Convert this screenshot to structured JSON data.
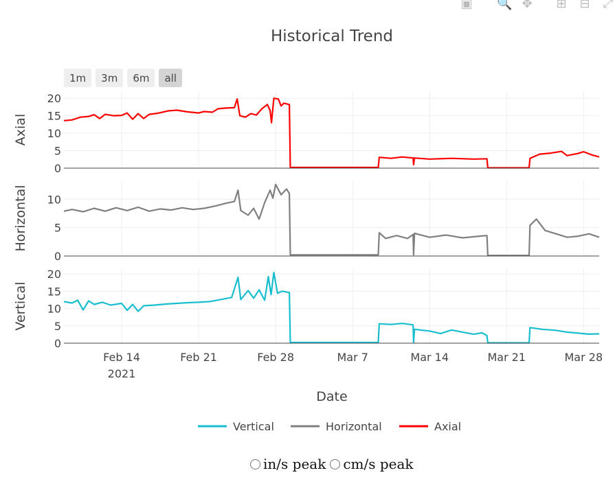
{
  "modebar": {
    "icons": [
      "camera-icon",
      "zoom-icon",
      "pan-icon",
      "zoom-in-icon",
      "zoom-out-icon",
      "autoscale-icon"
    ]
  },
  "range_selector": {
    "buttons": [
      "1m",
      "3m",
      "6m",
      "all"
    ],
    "active": "all"
  },
  "radio_options": {
    "in": "in/s peak",
    "cm": "cm/s peak"
  },
  "chart_data": {
    "type": "line",
    "title": "Historical Trend",
    "xlabel": "Date",
    "xlim": [
      "2021-02-08 18:00",
      "2021-03-29 10:00"
    ],
    "x_ticks": [
      "2021-02-14",
      "2021-02-21",
      "2021-02-28",
      "2021-03-07",
      "2021-03-14",
      "2021-03-21",
      "2021-03-28"
    ],
    "x_tick_labels": [
      "Feb 14",
      "Feb 21",
      "Feb 28",
      "Mar 7",
      "Mar 14",
      "Mar 21",
      "Mar 28"
    ],
    "x_tick_sublabel": "2021",
    "grid": true,
    "legend_placement": "bottom",
    "legend_order": [
      "Vertical",
      "Horizontal",
      "Axial"
    ],
    "panels": [
      {
        "ylabel": "Axial",
        "series": "Axial",
        "ylim": [
          0,
          22
        ],
        "yticks": [
          0,
          5,
          10,
          15,
          20
        ]
      },
      {
        "ylabel": "Horizontal",
        "series": "Horizontal",
        "ylim": [
          0,
          13.3
        ],
        "yticks": [
          0,
          5,
          10
        ]
      },
      {
        "ylabel": "Vertical",
        "series": "Vertical",
        "ylim": [
          0,
          21.4
        ],
        "yticks": [
          0,
          5,
          10,
          15,
          20
        ]
      }
    ],
    "series": [
      {
        "name": "Axial",
        "color": "#ff0000",
        "points": [
          [
            "2021-02-08 18:00",
            13.6
          ],
          [
            "2021-02-09 12:00",
            13.8
          ],
          [
            "2021-02-10 06:00",
            14.6
          ],
          [
            "2021-02-11 00:00",
            14.8
          ],
          [
            "2021-02-11 12:00",
            15.3
          ],
          [
            "2021-02-12 00:00",
            14.2
          ],
          [
            "2021-02-12 12:00",
            15.4
          ],
          [
            "2021-02-13 06:00",
            15.0
          ],
          [
            "2021-02-14 00:00",
            15.1
          ],
          [
            "2021-02-14 12:00",
            15.8
          ],
          [
            "2021-02-15 00:00",
            14.0
          ],
          [
            "2021-02-15 12:00",
            15.6
          ],
          [
            "2021-02-16 00:00",
            14.2
          ],
          [
            "2021-02-16 12:00",
            15.4
          ],
          [
            "2021-02-17 06:00",
            15.7
          ],
          [
            "2021-02-18 06:00",
            16.4
          ],
          [
            "2021-02-19 00:00",
            16.6
          ],
          [
            "2021-02-20 00:00",
            16.1
          ],
          [
            "2021-02-21 00:00",
            15.8
          ],
          [
            "2021-02-21 12:00",
            16.2
          ],
          [
            "2021-02-22 06:00",
            16.0
          ],
          [
            "2021-02-22 18:00",
            17.0
          ],
          [
            "2021-02-23 12:00",
            17.2
          ],
          [
            "2021-02-24 06:00",
            17.3
          ],
          [
            "2021-02-24 12:00",
            19.8
          ],
          [
            "2021-02-24 18:00",
            15.0
          ],
          [
            "2021-02-25 06:00",
            14.6
          ],
          [
            "2021-02-25 18:00",
            15.6
          ],
          [
            "2021-02-26 06:00",
            15.2
          ],
          [
            "2021-02-26 18:00",
            17.0
          ],
          [
            "2021-02-27 06:00",
            18.2
          ],
          [
            "2021-02-27 12:00",
            16.5
          ],
          [
            "2021-02-27 15:00",
            13.0
          ],
          [
            "2021-02-27 20:00",
            20.0
          ],
          [
            "2021-02-28 06:00",
            19.8
          ],
          [
            "2021-02-28 12:00",
            17.8
          ],
          [
            "2021-02-28 18:00",
            18.6
          ],
          [
            "2021-03-01 06:00",
            18.2
          ],
          [
            "2021-03-01 08:00",
            0.2
          ],
          [
            "2021-03-09 08:00",
            0.2
          ],
          [
            "2021-03-09 10:00",
            3.1
          ],
          [
            "2021-03-10 12:00",
            2.8
          ],
          [
            "2021-03-11 12:00",
            3.2
          ],
          [
            "2021-03-12 12:00",
            2.9
          ],
          [
            "2021-03-12 13:00",
            1.0
          ],
          [
            "2021-03-12 15:00",
            2.9
          ],
          [
            "2021-03-14 00:00",
            2.6
          ],
          [
            "2021-03-16 00:00",
            2.8
          ],
          [
            "2021-03-18 00:00",
            2.6
          ],
          [
            "2021-03-19 05:00",
            2.7
          ],
          [
            "2021-03-19 07:00",
            0.1
          ],
          [
            "2021-03-23 01:00",
            0.1
          ],
          [
            "2021-03-23 03:00",
            2.8
          ],
          [
            "2021-03-24 00:00",
            4.0
          ],
          [
            "2021-03-25 00:00",
            4.3
          ],
          [
            "2021-03-26 00:00",
            4.8
          ],
          [
            "2021-03-26 12:00",
            3.6
          ],
          [
            "2021-03-27 12:00",
            4.2
          ],
          [
            "2021-03-28 00:00",
            4.7
          ],
          [
            "2021-03-28 18:00",
            3.8
          ],
          [
            "2021-03-29 10:00",
            3.2
          ]
        ]
      },
      {
        "name": "Horizontal",
        "color": "#7f7f7f",
        "points": [
          [
            "2021-02-08 18:00",
            7.9
          ],
          [
            "2021-02-09 12:00",
            8.2
          ],
          [
            "2021-02-10 12:00",
            7.8
          ],
          [
            "2021-02-11 12:00",
            8.4
          ],
          [
            "2021-02-12 12:00",
            7.9
          ],
          [
            "2021-02-13 12:00",
            8.5
          ],
          [
            "2021-02-14 12:00",
            8.0
          ],
          [
            "2021-02-15 12:00",
            8.6
          ],
          [
            "2021-02-16 12:00",
            7.9
          ],
          [
            "2021-02-17 12:00",
            8.3
          ],
          [
            "2021-02-18 12:00",
            8.1
          ],
          [
            "2021-02-19 12:00",
            8.5
          ],
          [
            "2021-02-20 12:00",
            8.2
          ],
          [
            "2021-02-21 12:00",
            8.4
          ],
          [
            "2021-02-22 12:00",
            8.8
          ],
          [
            "2021-02-23 12:00",
            9.3
          ],
          [
            "2021-02-24 06:00",
            9.6
          ],
          [
            "2021-02-24 14:00",
            11.6
          ],
          [
            "2021-02-24 20:00",
            8.0
          ],
          [
            "2021-02-25 12:00",
            7.2
          ],
          [
            "2021-02-26 00:00",
            8.4
          ],
          [
            "2021-02-26 12:00",
            6.5
          ],
          [
            "2021-02-27 00:00",
            9.4
          ],
          [
            "2021-02-27 12:00",
            11.6
          ],
          [
            "2021-02-27 18:00",
            10.2
          ],
          [
            "2021-02-28 00:00",
            12.6
          ],
          [
            "2021-02-28 12:00",
            10.8
          ],
          [
            "2021-03-01 00:00",
            11.8
          ],
          [
            "2021-03-01 06:00",
            11.0
          ],
          [
            "2021-03-01 08:00",
            0.2
          ],
          [
            "2021-03-09 08:00",
            0.2
          ],
          [
            "2021-03-09 10:00",
            4.1
          ],
          [
            "2021-03-10 00:00",
            3.1
          ],
          [
            "2021-03-11 00:00",
            3.6
          ],
          [
            "2021-03-12 00:00",
            3.1
          ],
          [
            "2021-03-12 12:00",
            3.8
          ],
          [
            "2021-03-12 13:00",
            0.2
          ],
          [
            "2021-03-12 15:00",
            4.0
          ],
          [
            "2021-03-14 00:00",
            3.3
          ],
          [
            "2021-03-15 12:00",
            3.7
          ],
          [
            "2021-03-17 00:00",
            3.2
          ],
          [
            "2021-03-18 12:00",
            3.5
          ],
          [
            "2021-03-19 05:00",
            3.6
          ],
          [
            "2021-03-19 07:00",
            0.1
          ],
          [
            "2021-03-23 01:00",
            0.1
          ],
          [
            "2021-03-23 03:00",
            5.4
          ],
          [
            "2021-03-23 17:00",
            6.5
          ],
          [
            "2021-03-24 12:00",
            4.5
          ],
          [
            "2021-03-25 12:00",
            3.9
          ],
          [
            "2021-03-26 12:00",
            3.3
          ],
          [
            "2021-03-27 12:00",
            3.5
          ],
          [
            "2021-03-28 12:00",
            3.9
          ],
          [
            "2021-03-29 10:00",
            3.3
          ]
        ]
      },
      {
        "name": "Vertical",
        "color": "#17becf",
        "points": [
          [
            "2021-02-08 18:00",
            12.0
          ],
          [
            "2021-02-09 12:00",
            11.6
          ],
          [
            "2021-02-10 00:00",
            12.4
          ],
          [
            "2021-02-10 12:00",
            9.6
          ],
          [
            "2021-02-11 00:00",
            12.2
          ],
          [
            "2021-02-11 12:00",
            11.2
          ],
          [
            "2021-02-12 06:00",
            11.8
          ],
          [
            "2021-02-13 00:00",
            11.0
          ],
          [
            "2021-02-14 00:00",
            11.5
          ],
          [
            "2021-02-14 12:00",
            9.5
          ],
          [
            "2021-02-15 00:00",
            11.2
          ],
          [
            "2021-02-15 12:00",
            9.2
          ],
          [
            "2021-02-16 00:00",
            10.8
          ],
          [
            "2021-02-17 00:00",
            11.0
          ],
          [
            "2021-02-18 00:00",
            11.3
          ],
          [
            "2021-02-19 00:00",
            11.5
          ],
          [
            "2021-02-20 00:00",
            11.7
          ],
          [
            "2021-02-21 00:00",
            11.8
          ],
          [
            "2021-02-22 00:00",
            12.0
          ],
          [
            "2021-02-23 00:00",
            12.6
          ],
          [
            "2021-02-24 00:00",
            13.2
          ],
          [
            "2021-02-24 14:00",
            19.0
          ],
          [
            "2021-02-24 20:00",
            12.6
          ],
          [
            "2021-02-25 12:00",
            15.2
          ],
          [
            "2021-02-26 00:00",
            13.0
          ],
          [
            "2021-02-26 12:00",
            15.4
          ],
          [
            "2021-02-27 00:00",
            12.4
          ],
          [
            "2021-02-27 08:00",
            19.2
          ],
          [
            "2021-02-27 14:00",
            14.0
          ],
          [
            "2021-02-27 20:00",
            20.4
          ],
          [
            "2021-02-28 04:00",
            14.4
          ],
          [
            "2021-02-28 14:00",
            15.0
          ],
          [
            "2021-03-01 06:00",
            14.6
          ],
          [
            "2021-03-01 08:00",
            0.2
          ],
          [
            "2021-03-09 08:00",
            0.2
          ],
          [
            "2021-03-09 10:00",
            5.6
          ],
          [
            "2021-03-10 12:00",
            5.4
          ],
          [
            "2021-03-11 12:00",
            5.7
          ],
          [
            "2021-03-12 12:00",
            5.3
          ],
          [
            "2021-03-12 13:00",
            0.2
          ],
          [
            "2021-03-12 15:00",
            4.0
          ],
          [
            "2021-03-14 00:00",
            3.5
          ],
          [
            "2021-03-15 00:00",
            2.8
          ],
          [
            "2021-03-16 00:00",
            3.8
          ],
          [
            "2021-03-17 00:00",
            3.2
          ],
          [
            "2021-03-18 00:00",
            2.6
          ],
          [
            "2021-03-18 18:00",
            3.0
          ],
          [
            "2021-03-19 05:00",
            2.2
          ],
          [
            "2021-03-19 07:00",
            0.1
          ],
          [
            "2021-03-23 01:00",
            0.1
          ],
          [
            "2021-03-23 03:00",
            4.5
          ],
          [
            "2021-03-24 06:00",
            4.0
          ],
          [
            "2021-03-25 12:00",
            3.7
          ],
          [
            "2021-03-26 12:00",
            3.2
          ],
          [
            "2021-03-27 12:00",
            2.9
          ],
          [
            "2021-03-28 12:00",
            2.6
          ],
          [
            "2021-03-29 10:00",
            2.7
          ]
        ]
      }
    ]
  }
}
